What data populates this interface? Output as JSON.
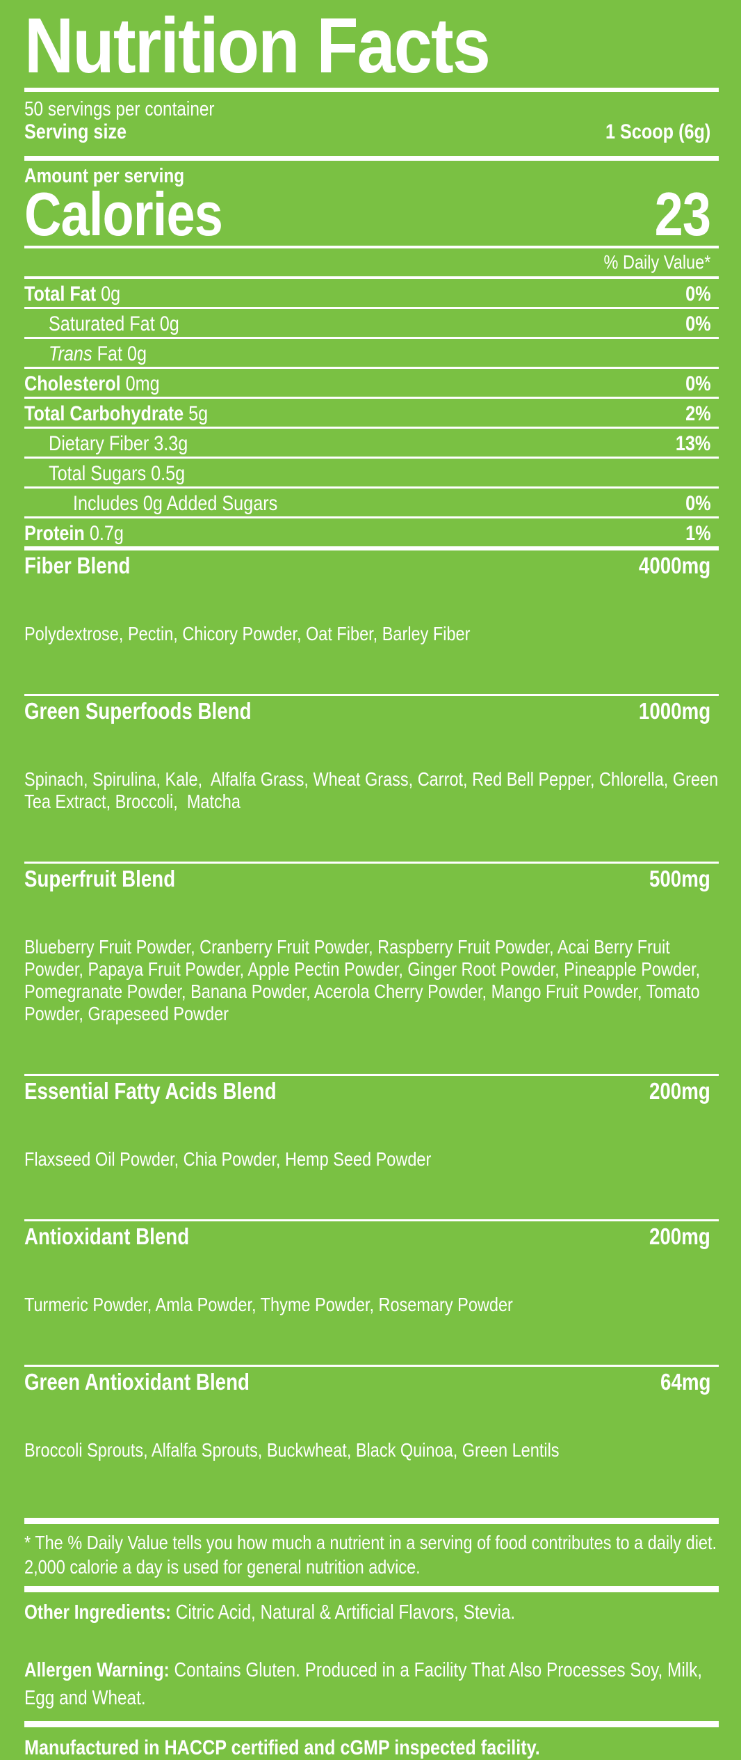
{
  "colors": {
    "background": "#7AC143",
    "text": "#FFFFFF"
  },
  "label": {
    "title": "Nutrition Facts",
    "servings_per_container": "50 servings per container",
    "serving_size": {
      "label": "Serving size",
      "value": "1 Scoop (6g)"
    },
    "amount_per_serving_label": "Amount per serving",
    "calories": {
      "label": "Calories",
      "value": "23"
    },
    "daily_value_header": "% Daily Value*",
    "nutrients": [
      {
        "name": "Total Fat",
        "amount": "0g",
        "dv": "0%",
        "bold": true,
        "indent": 0,
        "italic_name": false
      },
      {
        "name": "Saturated Fat",
        "amount": "0g",
        "dv": "0%",
        "bold": false,
        "indent": 1,
        "italic_name": false
      },
      {
        "name": "Trans",
        "amount": "Fat 0g",
        "dv": "",
        "bold": false,
        "indent": 1,
        "italic_name": true
      },
      {
        "name": "Cholesterol",
        "amount": "0mg",
        "dv": "0%",
        "bold": true,
        "indent": 0,
        "italic_name": false
      },
      {
        "name": "Total Carbohydrate",
        "amount": "5g",
        "dv": "2%",
        "bold": true,
        "indent": 0,
        "italic_name": false
      },
      {
        "name": "Dietary Fiber",
        "amount": "3.3g",
        "dv": "13%",
        "bold": false,
        "indent": 1,
        "italic_name": false
      },
      {
        "name": "Total Sugars",
        "amount": "0.5g",
        "dv": "",
        "bold": false,
        "indent": 1,
        "italic_name": false
      },
      {
        "name": "Includes 0g Added Sugars",
        "amount": "",
        "dv": "0%",
        "bold": false,
        "indent": 2,
        "italic_name": false
      },
      {
        "name": "Protein",
        "amount": "0.7g",
        "dv": "1%",
        "bold": true,
        "indent": 0,
        "italic_name": false
      }
    ],
    "blends": [
      {
        "name": "Fiber Blend",
        "amount": "4000mg",
        "ingredients": "Polydextrose, Pectin, Chicory Powder, Oat Fiber, Barley Fiber"
      },
      {
        "name": "Green Superfoods Blend",
        "amount": "1000mg",
        "ingredients": "Spinach, Spirulina, Kale,  Alfalfa Grass, Wheat Grass, Carrot, Red Bell Pepper, Chlorella, Green Tea Extract, Broccoli,  Matcha"
      },
      {
        "name": "Superfruit Blend",
        "amount": "500mg",
        "ingredients": "Blueberry Fruit Powder, Cranberry Fruit Powder, Raspberry Fruit Powder, Acai Berry Fruit Powder, Papaya Fruit Powder, Apple Pectin Powder, Ginger Root Powder, Pineapple Powder, Pomegranate Powder, Banana Powder, Acerola Cherry Powder, Mango Fruit Powder, Tomato Powder, Grapeseed Powder"
      },
      {
        "name": "Essential Fatty Acids Blend",
        "amount": "200mg",
        "ingredients": "Flaxseed Oil Powder, Chia Powder, Hemp Seed Powder"
      },
      {
        "name": "Antioxidant Blend",
        "amount": "200mg",
        "ingredients": "Turmeric Powder, Amla Powder, Thyme Powder, Rosemary Powder"
      },
      {
        "name": "Green Antioxidant Blend",
        "amount": "64mg",
        "ingredients": "Broccoli Sprouts, Alfalfa Sprouts, Buckwheat, Black Quinoa, Green Lentils"
      }
    ],
    "footnote": "* The % Daily Value tells you how much a nutrient in a serving of food contributes to a daily diet. 2,000 calorie a day is used for general nutrition advice.",
    "other_ingredients": {
      "label": "Other Ingredients:",
      "text": "Citric Acid, Natural & Artificial Flavors, Stevia."
    },
    "allergen_warning": {
      "label": "Allergen Warning:",
      "text": "Contains Gluten. Produced in a Facility That Also Processes Soy, Milk, Egg and Wheat."
    },
    "manufactured_note": "Manufactured in HACCP certified and cGMP inspected facility."
  }
}
